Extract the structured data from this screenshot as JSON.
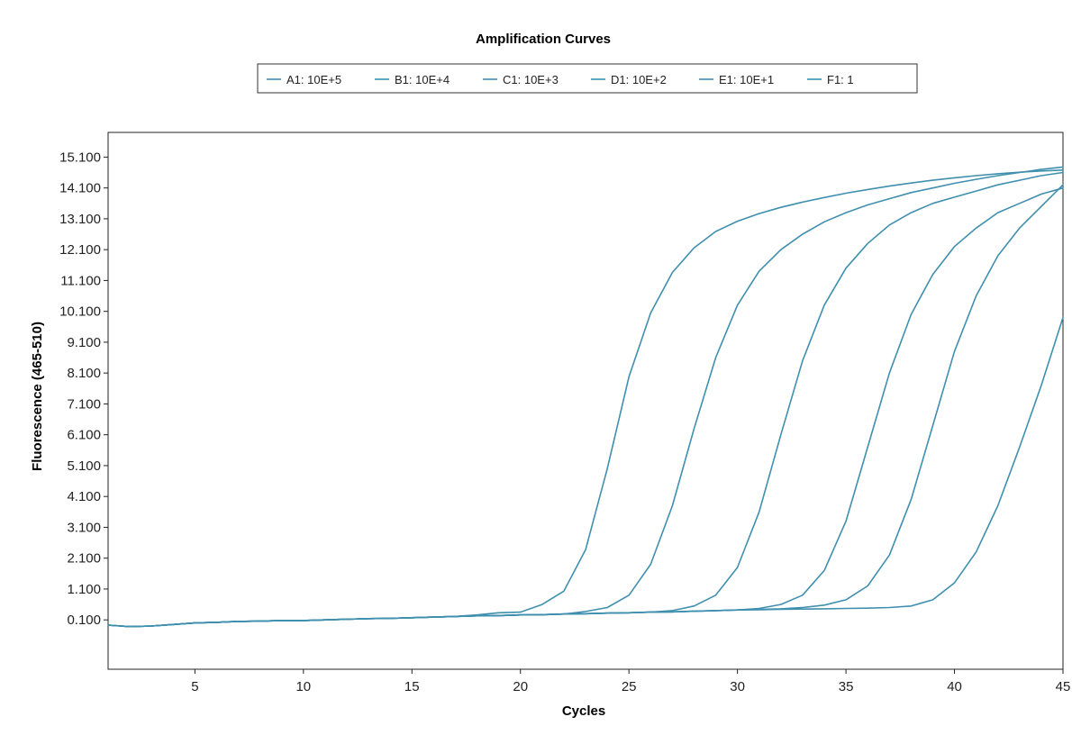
{
  "chart_data": {
    "type": "line",
    "title": "Amplification Curves",
    "xlabel": "Cycles",
    "ylabel": "Fluorescence (465-510)",
    "xlim": [
      1,
      45
    ],
    "ylim": [
      -1.5,
      15.9
    ],
    "xticks": [
      5,
      10,
      15,
      20,
      25,
      30,
      35,
      40,
      45
    ],
    "xtick_labels": [
      "5",
      "10",
      "15",
      "20",
      "25",
      "30",
      "35",
      "40",
      "45"
    ],
    "yticks": [
      0.1,
      1.1,
      2.1,
      3.1,
      4.1,
      5.1,
      6.1,
      7.1,
      8.1,
      9.1,
      10.1,
      11.1,
      12.1,
      13.1,
      14.1,
      15.1
    ],
    "ytick_labels": [
      "0.100",
      "1.100",
      "2.100",
      "3.100",
      "4.100",
      "5.100",
      "6.100",
      "7.100",
      "8.100",
      "9.100",
      "10.100",
      "11.100",
      "12.100",
      "13.100",
      "14.100",
      "15.100"
    ],
    "grid": false,
    "legend_position": "top",
    "line_color": "#3f8fae",
    "cycles": [
      1,
      2,
      3,
      4,
      5,
      6,
      7,
      8,
      9,
      10,
      11,
      12,
      13,
      14,
      15,
      16,
      17,
      18,
      19,
      20,
      21,
      22,
      23,
      24,
      25,
      26,
      27,
      28,
      29,
      30,
      31,
      32,
      33,
      34,
      35,
      36,
      37,
      38,
      39,
      40,
      41,
      42,
      43,
      44,
      45
    ],
    "series": [
      {
        "name": "A1: 10E+5",
        "values": [
          -0.07,
          -0.12,
          -0.1,
          -0.05,
          0,
          0.02,
          0.05,
          0.06,
          0.08,
          0.08,
          0.1,
          0.12,
          0.14,
          0.15,
          0.17,
          0.19,
          0.21,
          0.26,
          0.33,
          0.35,
          0.6,
          1.03,
          2.37,
          5.0,
          7.98,
          10.05,
          11.36,
          12.16,
          12.69,
          13.02,
          13.27,
          13.47,
          13.64,
          13.79,
          13.93,
          14.05,
          14.16,
          14.26,
          14.35,
          14.43,
          14.5,
          14.56,
          14.61,
          14.65,
          14.68
        ]
      },
      {
        "name": "B1: 10E+4",
        "values": [
          -0.07,
          -0.12,
          -0.1,
          -0.05,
          0,
          0.02,
          0.05,
          0.06,
          0.08,
          0.08,
          0.1,
          0.12,
          0.14,
          0.15,
          0.17,
          0.19,
          0.21,
          0.23,
          0.24,
          0.26,
          0.27,
          0.29,
          0.37,
          0.5,
          0.9,
          1.9,
          3.8,
          6.3,
          8.6,
          10.3,
          11.4,
          12.1,
          12.6,
          13.0,
          13.3,
          13.55,
          13.75,
          13.95,
          14.1,
          14.25,
          14.38,
          14.5,
          14.6,
          14.7,
          14.78
        ]
      },
      {
        "name": "C1: 10E+3",
        "values": [
          -0.07,
          -0.12,
          -0.1,
          -0.05,
          0,
          0.02,
          0.05,
          0.06,
          0.08,
          0.08,
          0.1,
          0.12,
          0.14,
          0.15,
          0.17,
          0.19,
          0.21,
          0.23,
          0.24,
          0.26,
          0.27,
          0.29,
          0.3,
          0.32,
          0.33,
          0.35,
          0.4,
          0.55,
          0.9,
          1.8,
          3.6,
          6.1,
          8.5,
          10.3,
          11.5,
          12.3,
          12.9,
          13.3,
          13.6,
          13.8,
          14.0,
          14.2,
          14.35,
          14.5,
          14.6
        ]
      },
      {
        "name": "D1: 10E+2",
        "values": [
          -0.07,
          -0.12,
          -0.1,
          -0.05,
          0,
          0.02,
          0.05,
          0.06,
          0.08,
          0.08,
          0.1,
          0.12,
          0.14,
          0.15,
          0.17,
          0.19,
          0.21,
          0.23,
          0.24,
          0.26,
          0.27,
          0.29,
          0.3,
          0.32,
          0.33,
          0.35,
          0.36,
          0.38,
          0.4,
          0.42,
          0.47,
          0.6,
          0.9,
          1.7,
          3.3,
          5.7,
          8.1,
          10.0,
          11.3,
          12.2,
          12.8,
          13.3,
          13.6,
          13.9,
          14.1
        ]
      },
      {
        "name": "E1: 10E+1",
        "values": [
          -0.07,
          -0.12,
          -0.1,
          -0.05,
          0,
          0.02,
          0.05,
          0.06,
          0.08,
          0.08,
          0.1,
          0.12,
          0.14,
          0.15,
          0.17,
          0.19,
          0.21,
          0.23,
          0.24,
          0.26,
          0.27,
          0.29,
          0.3,
          0.32,
          0.33,
          0.35,
          0.36,
          0.38,
          0.4,
          0.42,
          0.44,
          0.46,
          0.5,
          0.58,
          0.75,
          1.2,
          2.2,
          4.0,
          6.4,
          8.8,
          10.6,
          11.9,
          12.8,
          13.5,
          14.2
        ]
      },
      {
        "name": "F1: 1",
        "values": [
          -0.07,
          -0.12,
          -0.1,
          -0.05,
          0,
          0.02,
          0.05,
          0.06,
          0.08,
          0.08,
          0.1,
          0.12,
          0.14,
          0.15,
          0.17,
          0.19,
          0.21,
          0.23,
          0.24,
          0.26,
          0.27,
          0.29,
          0.3,
          0.32,
          0.33,
          0.35,
          0.36,
          0.38,
          0.4,
          0.42,
          0.43,
          0.44,
          0.45,
          0.46,
          0.47,
          0.48,
          0.5,
          0.55,
          0.75,
          1.3,
          2.3,
          3.8,
          5.7,
          7.7,
          9.9
        ]
      }
    ]
  }
}
